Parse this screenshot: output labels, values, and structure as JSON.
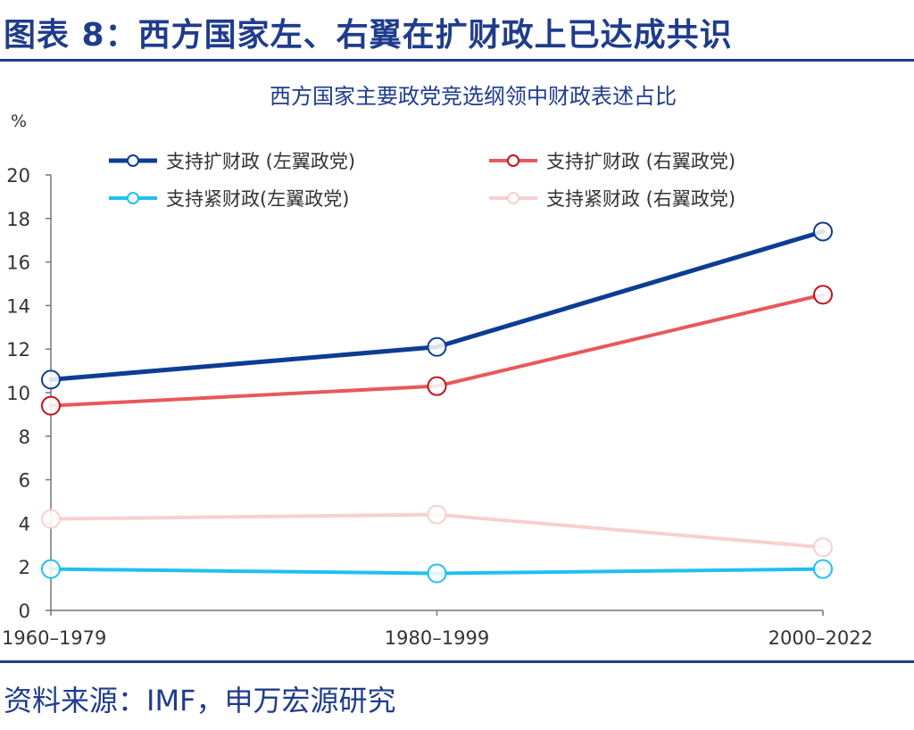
{
  "figure": {
    "title": "图表 8：西方国家左、右翼在扩财政上已达成共识",
    "source": "资料来源：IMF，申万宏源研究"
  },
  "colors": {
    "accent": "#1f3c8c"
  },
  "chart_data": {
    "type": "line",
    "title": "西方国家主要政党竞选纲领中财政表述占比",
    "ylabel": "%",
    "xlabel": "",
    "categories": [
      "1960–1979",
      "1980–1999",
      "2000–2022"
    ],
    "ylim": [
      0,
      20
    ],
    "yticks": [
      0,
      2,
      4,
      6,
      8,
      10,
      12,
      14,
      16,
      18,
      20
    ],
    "grid": false,
    "legend_position": "top",
    "series": [
      {
        "name": "支持扩财政 (左翼政党)",
        "values": [
          10.6,
          12.1,
          17.4
        ],
        "color": "#0d3c94",
        "width": 5
      },
      {
        "name": "支持扩财政 (右翼政党)",
        "values": [
          9.4,
          10.3,
          14.5
        ],
        "color": "#e8585c",
        "marker": "#c0141e",
        "width": 4
      },
      {
        "name": "支持紧财政(左翼政党)",
        "values": [
          1.9,
          1.7,
          1.9
        ],
        "color": "#1fc0f2",
        "width": 4
      },
      {
        "name": "支持紧财政 (右翼政党)",
        "values": [
          4.2,
          4.4,
          2.9
        ],
        "color": "#f8cfcf",
        "width": 4
      }
    ]
  }
}
